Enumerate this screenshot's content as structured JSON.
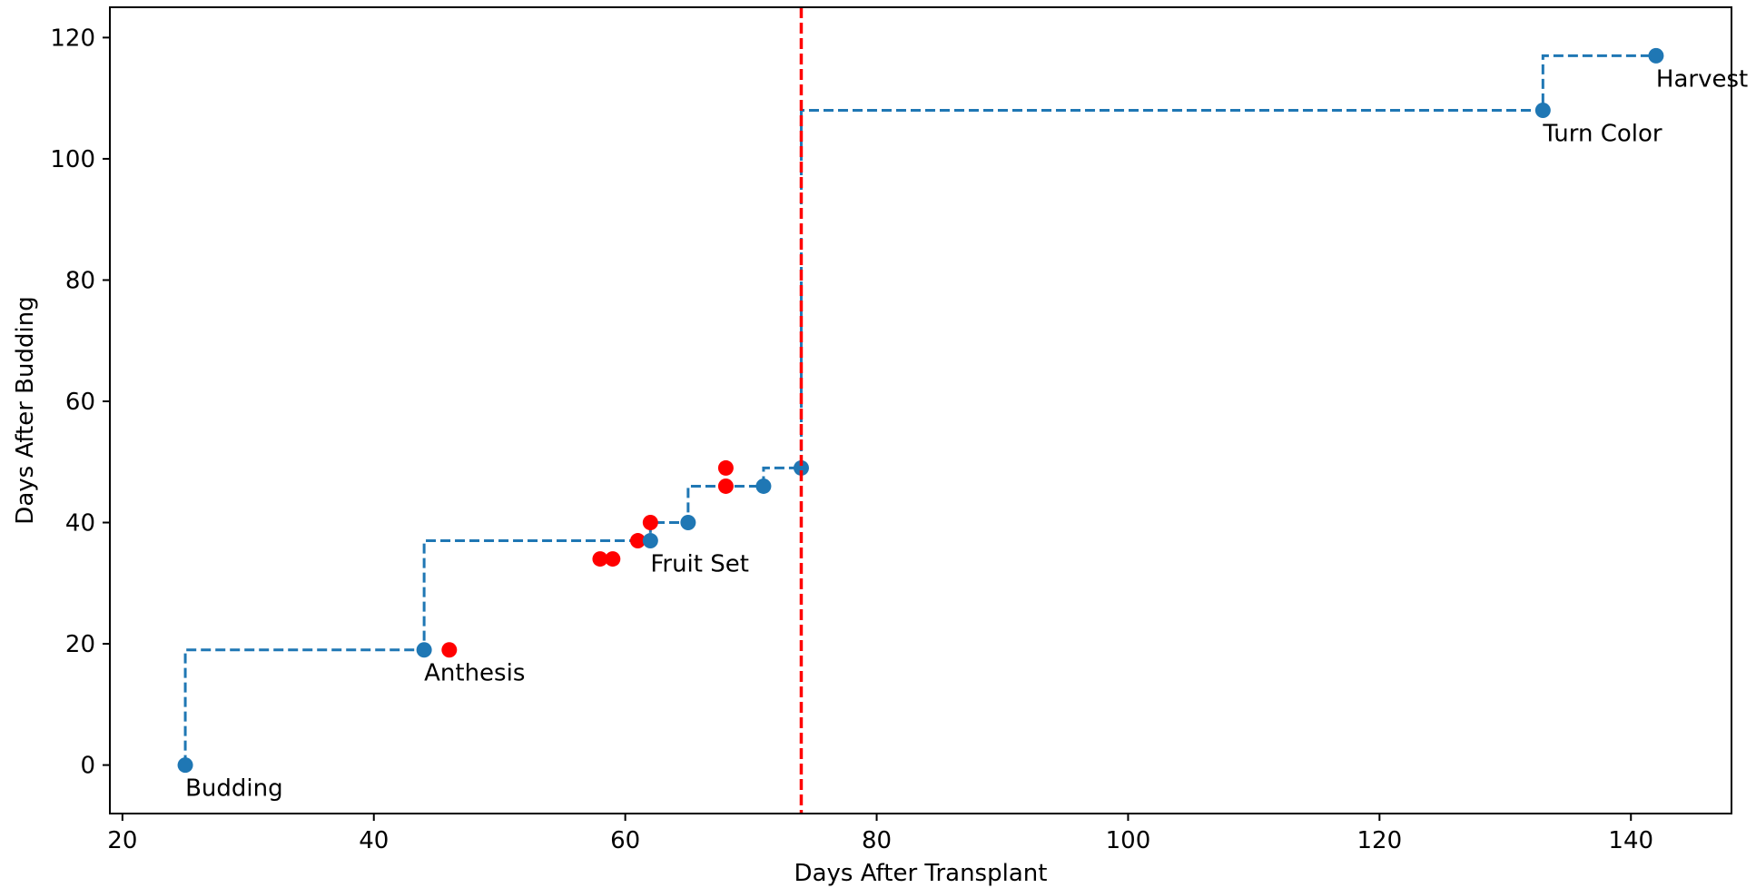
{
  "chart_data": {
    "type": "scatter",
    "title": "",
    "xlabel": "Days After Transplant",
    "ylabel": "Days After Budding",
    "xlim": [
      19,
      148
    ],
    "ylim": [
      -8,
      125
    ],
    "xticks": [
      20,
      40,
      60,
      80,
      100,
      120,
      140
    ],
    "yticks": [
      0,
      20,
      40,
      60,
      80,
      100,
      120
    ],
    "grid": false,
    "colors": {
      "step_line": "#1f77b4",
      "stage_points": "#1f77b4",
      "extra_points": "#ff0000",
      "vline": "#ff0000"
    },
    "series": [
      {
        "role": "step",
        "style": "dashed",
        "x": [
          25,
          44,
          62,
          65,
          71,
          74,
          133,
          142
        ],
        "y": [
          0,
          19,
          37,
          40,
          46,
          49,
          108,
          117
        ],
        "labels": [
          "Budding",
          "Anthesis",
          "Fruit Set",
          "",
          "",
          "",
          "Turn Color",
          "Harvest"
        ]
      },
      {
        "role": "extra",
        "x": [
          46,
          58,
          59,
          61,
          62,
          68,
          68
        ],
        "y": [
          19,
          34,
          34,
          37,
          40,
          46,
          49
        ]
      }
    ],
    "vline": {
      "x": 74,
      "style": "dashed"
    }
  }
}
